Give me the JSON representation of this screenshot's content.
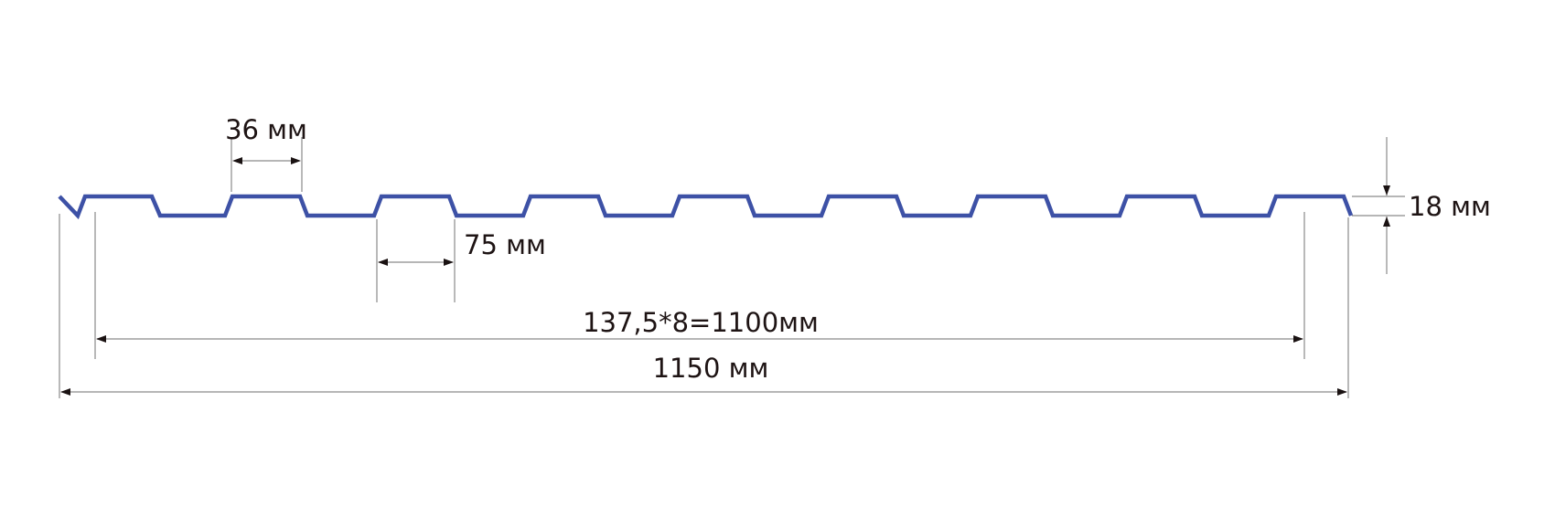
{
  "colors": {
    "profile": "#3d51a6",
    "text": "#1e1414",
    "dimension_lines": "#8a8a8a"
  },
  "labels": {
    "rib_top_width": "36 мм",
    "rib_trough_width": "75 мм",
    "height": "18 мм",
    "useful_width": "137,5*8=1100мм",
    "total_width": "1150 мм"
  }
}
